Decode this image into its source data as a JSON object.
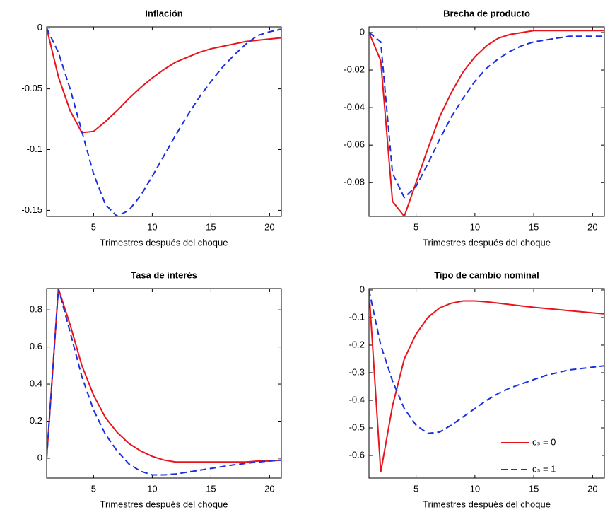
{
  "chart_data": [
    {
      "type": "line",
      "title": "Inflación",
      "xlabel": "Trimestres después del choque",
      "x": [
        1,
        2,
        3,
        4,
        5,
        6,
        7,
        8,
        9,
        10,
        11,
        12,
        13,
        14,
        15,
        16,
        17,
        18,
        19,
        20,
        21
      ],
      "xlim": [
        1,
        21
      ],
      "xticks": [
        5,
        10,
        15,
        20
      ],
      "ylim": [
        -0.155,
        0.001
      ],
      "yticks": [
        0,
        -0.05,
        -0.1,
        -0.15
      ],
      "series": [
        {
          "color": "#e8141c",
          "dash": "solid",
          "values": [
            0,
            -0.04,
            -0.068,
            -0.086,
            -0.085,
            -0.077,
            -0.068,
            -0.058,
            -0.049,
            -0.041,
            -0.034,
            -0.028,
            -0.024,
            -0.02,
            -0.017,
            -0.015,
            -0.013,
            -0.011,
            -0.01,
            -0.009,
            -0.008
          ]
        },
        {
          "color": "#1a2fe0",
          "dash": "dashed",
          "values": [
            0,
            -0.02,
            -0.05,
            -0.085,
            -0.12,
            -0.145,
            -0.155,
            -0.15,
            -0.138,
            -0.122,
            -0.105,
            -0.088,
            -0.072,
            -0.057,
            -0.044,
            -0.032,
            -0.022,
            -0.013,
            -0.006,
            -0.003,
            -0.001
          ]
        }
      ]
    },
    {
      "type": "line",
      "title": "Brecha de producto",
      "xlabel": "Trimestres después del choque",
      "x": [
        1,
        2,
        3,
        4,
        5,
        6,
        7,
        8,
        9,
        10,
        11,
        12,
        13,
        14,
        15,
        16,
        17,
        18,
        19,
        20,
        21
      ],
      "xlim": [
        1,
        21
      ],
      "xticks": [
        5,
        10,
        15,
        20
      ],
      "ylim": [
        -0.098,
        0.003
      ],
      "yticks": [
        0,
        -0.02,
        -0.04,
        -0.06,
        -0.08
      ],
      "series": [
        {
          "color": "#e8141c",
          "dash": "solid",
          "values": [
            0,
            -0.015,
            -0.09,
            -0.098,
            -0.08,
            -0.062,
            -0.045,
            -0.032,
            -0.021,
            -0.013,
            -0.007,
            -0.003,
            -0.001,
            0,
            0.001,
            0.001,
            0.001,
            0.001,
            0.001,
            0.001,
            0.001
          ]
        },
        {
          "color": "#1a2fe0",
          "dash": "dashed",
          "values": [
            0,
            -0.005,
            -0.075,
            -0.088,
            -0.082,
            -0.07,
            -0.057,
            -0.045,
            -0.035,
            -0.026,
            -0.019,
            -0.014,
            -0.01,
            -0.007,
            -0.005,
            -0.004,
            -0.003,
            -0.002,
            -0.002,
            -0.002,
            -0.002
          ]
        }
      ]
    },
    {
      "type": "line",
      "title": "Tasa de interés",
      "xlabel": "Trimestres después del choque",
      "x": [
        1,
        2,
        3,
        4,
        5,
        6,
        7,
        8,
        9,
        10,
        11,
        12,
        13,
        14,
        15,
        16,
        17,
        18,
        19,
        20,
        21
      ],
      "xlim": [
        1,
        21
      ],
      "xticks": [
        5,
        10,
        15,
        20
      ],
      "ylim": [
        -0.107,
        0.915
      ],
      "yticks": [
        0,
        0.2,
        0.4,
        0.6,
        0.8
      ],
      "series": [
        {
          "color": "#e8141c",
          "dash": "solid",
          "values": [
            0,
            0.915,
            0.72,
            0.5,
            0.34,
            0.22,
            0.14,
            0.08,
            0.04,
            0.01,
            -0.01,
            -0.02,
            -0.02,
            -0.02,
            -0.02,
            -0.02,
            -0.02,
            -0.02,
            -0.015,
            -0.015,
            -0.01
          ]
        },
        {
          "color": "#1a2fe0",
          "dash": "dashed",
          "values": [
            0,
            0.915,
            0.68,
            0.44,
            0.26,
            0.13,
            0.04,
            -0.03,
            -0.07,
            -0.09,
            -0.09,
            -0.085,
            -0.075,
            -0.065,
            -0.055,
            -0.045,
            -0.035,
            -0.028,
            -0.02,
            -0.015,
            -0.01
          ]
        }
      ]
    },
    {
      "type": "line",
      "title": "Tipo de cambio nominal",
      "xlabel": "Trimestres después del choque",
      "x": [
        1,
        2,
        3,
        4,
        5,
        6,
        7,
        8,
        9,
        10,
        11,
        12,
        13,
        14,
        15,
        16,
        17,
        18,
        19,
        20,
        21
      ],
      "xlim": [
        1,
        21
      ],
      "xticks": [
        5,
        10,
        15,
        20
      ],
      "ylim": [
        -0.682,
        0.005
      ],
      "yticks": [
        0,
        -0.1,
        -0.2,
        -0.3,
        -0.4,
        -0.5,
        -0.6
      ],
      "legend": "lower right",
      "series": [
        {
          "name": "cₛ = 0",
          "color": "#e8141c",
          "dash": "solid",
          "values": [
            0,
            -0.66,
            -0.42,
            -0.25,
            -0.16,
            -0.1,
            -0.065,
            -0.048,
            -0.04,
            -0.04,
            -0.043,
            -0.048,
            -0.053,
            -0.058,
            -0.063,
            -0.067,
            -0.071,
            -0.075,
            -0.079,
            -0.083,
            -0.087
          ]
        },
        {
          "name": "cₛ = 1",
          "color": "#1a2fe0",
          "dash": "dashed",
          "values": [
            0,
            -0.2,
            -0.33,
            -0.43,
            -0.49,
            -0.52,
            -0.515,
            -0.49,
            -0.46,
            -0.43,
            -0.4,
            -0.375,
            -0.355,
            -0.34,
            -0.325,
            -0.31,
            -0.3,
            -0.29,
            -0.285,
            -0.28,
            -0.275
          ]
        }
      ]
    }
  ]
}
